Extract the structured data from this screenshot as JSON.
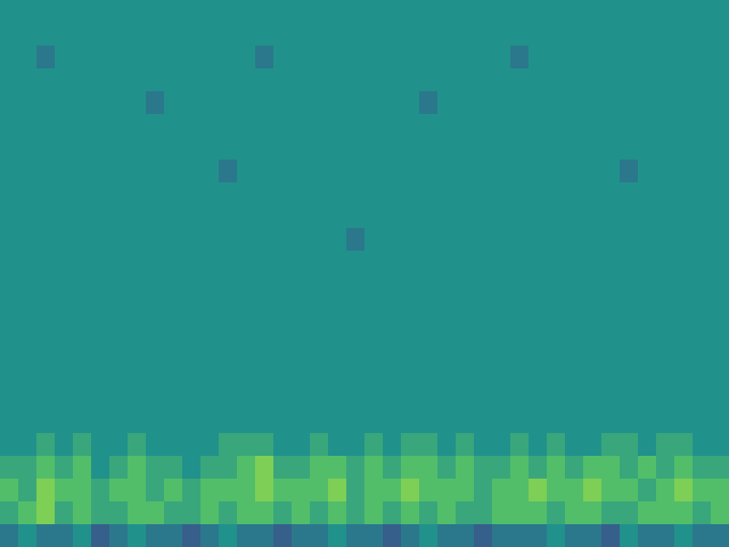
{
  "chart_data": {
    "type": "heatmap",
    "color": "viridis",
    "tick_labels": false,
    "color_range": [
      0,
      10
    ],
    "cells": [
      [
        5,
        5,
        5,
        5,
        5,
        5,
        5,
        5,
        5,
        5,
        5,
        5,
        5,
        5,
        5,
        5,
        5,
        5,
        5,
        5,
        5,
        5,
        5,
        5,
        5,
        5,
        5,
        5,
        5,
        5,
        5,
        5,
        5,
        5,
        5,
        5,
        5,
        5,
        5,
        5
      ],
      [
        5,
        5,
        5,
        5,
        5,
        5,
        5,
        5,
        5,
        5,
        5,
        5,
        5,
        5,
        5,
        5,
        5,
        5,
        5,
        5,
        5,
        5,
        5,
        5,
        5,
        5,
        5,
        5,
        5,
        5,
        5,
        5,
        5,
        5,
        5,
        5,
        5,
        5,
        5,
        5
      ],
      [
        5,
        5,
        4,
        5,
        5,
        5,
        5,
        5,
        5,
        5,
        5,
        5,
        5,
        5,
        4,
        5,
        5,
        5,
        5,
        5,
        5,
        5,
        5,
        5,
        5,
        5,
        5,
        5,
        4,
        5,
        5,
        5,
        5,
        5,
        5,
        5,
        5,
        5,
        5,
        5
      ],
      [
        5,
        5,
        5,
        5,
        5,
        5,
        5,
        5,
        5,
        5,
        5,
        5,
        5,
        5,
        5,
        5,
        5,
        5,
        5,
        5,
        5,
        5,
        5,
        5,
        5,
        5,
        5,
        5,
        5,
        5,
        5,
        5,
        5,
        5,
        5,
        5,
        5,
        5,
        5,
        5
      ],
      [
        5,
        5,
        5,
        5,
        5,
        5,
        5,
        5,
        4,
        5,
        5,
        5,
        5,
        5,
        5,
        5,
        5,
        5,
        5,
        5,
        5,
        5,
        5,
        4,
        5,
        5,
        5,
        5,
        5,
        5,
        5,
        5,
        5,
        5,
        5,
        5,
        5,
        5,
        5,
        5
      ],
      [
        5,
        5,
        5,
        5,
        5,
        5,
        5,
        5,
        5,
        5,
        5,
        5,
        5,
        5,
        5,
        5,
        5,
        5,
        5,
        5,
        5,
        5,
        5,
        5,
        5,
        5,
        5,
        5,
        5,
        5,
        5,
        5,
        5,
        5,
        5,
        5,
        5,
        5,
        5,
        5
      ],
      [
        5,
        5,
        5,
        5,
        5,
        5,
        5,
        5,
        5,
        5,
        5,
        5,
        5,
        5,
        5,
        5,
        5,
        5,
        5,
        5,
        5,
        5,
        5,
        5,
        5,
        5,
        5,
        5,
        5,
        5,
        5,
        5,
        5,
        5,
        5,
        5,
        5,
        5,
        5,
        5
      ],
      [
        5,
        5,
        5,
        5,
        5,
        5,
        5,
        5,
        5,
        5,
        5,
        5,
        4,
        5,
        5,
        5,
        5,
        5,
        5,
        5,
        5,
        5,
        5,
        5,
        5,
        5,
        5,
        5,
        5,
        5,
        5,
        5,
        5,
        5,
        4,
        5,
        5,
        5,
        5,
        5
      ],
      [
        5,
        5,
        5,
        5,
        5,
        5,
        5,
        5,
        5,
        5,
        5,
        5,
        5,
        5,
        5,
        5,
        5,
        5,
        5,
        5,
        5,
        5,
        5,
        5,
        5,
        5,
        5,
        5,
        5,
        5,
        5,
        5,
        5,
        5,
        5,
        5,
        5,
        5,
        5,
        5
      ],
      [
        5,
        5,
        5,
        5,
        5,
        5,
        5,
        5,
        5,
        5,
        5,
        5,
        5,
        5,
        5,
        5,
        5,
        5,
        5,
        5,
        5,
        5,
        5,
        5,
        5,
        5,
        5,
        5,
        5,
        5,
        5,
        5,
        5,
        5,
        5,
        5,
        5,
        5,
        5,
        5
      ],
      [
        5,
        5,
        5,
        5,
        5,
        5,
        5,
        5,
        5,
        5,
        5,
        5,
        5,
        5,
        5,
        5,
        5,
        5,
        5,
        4,
        5,
        5,
        5,
        5,
        5,
        5,
        5,
        5,
        5,
        5,
        5,
        5,
        5,
        5,
        5,
        5,
        5,
        5,
        5,
        5
      ],
      [
        5,
        5,
        5,
        5,
        5,
        5,
        5,
        5,
        5,
        5,
        5,
        5,
        5,
        5,
        5,
        5,
        5,
        5,
        5,
        5,
        5,
        5,
        5,
        5,
        5,
        5,
        5,
        5,
        5,
        5,
        5,
        5,
        5,
        5,
        5,
        5,
        5,
        5,
        5,
        5
      ],
      [
        5,
        5,
        5,
        5,
        5,
        5,
        5,
        5,
        5,
        5,
        5,
        5,
        5,
        5,
        5,
        5,
        5,
        5,
        5,
        5,
        5,
        5,
        5,
        5,
        5,
        5,
        5,
        5,
        5,
        5,
        5,
        5,
        5,
        5,
        5,
        5,
        5,
        5,
        5,
        5
      ],
      [
        5,
        5,
        5,
        5,
        5,
        5,
        5,
        5,
        5,
        5,
        5,
        5,
        5,
        5,
        5,
        5,
        5,
        5,
        5,
        5,
        5,
        5,
        5,
        5,
        5,
        5,
        5,
        5,
        5,
        5,
        5,
        5,
        5,
        5,
        5,
        5,
        5,
        5,
        5,
        5
      ],
      [
        5,
        5,
        5,
        5,
        5,
        5,
        5,
        5,
        5,
        5,
        5,
        5,
        5,
        5,
        5,
        5,
        5,
        5,
        5,
        5,
        5,
        5,
        5,
        5,
        5,
        5,
        5,
        5,
        5,
        5,
        5,
        5,
        5,
        5,
        5,
        5,
        5,
        5,
        5,
        5
      ],
      [
        5,
        5,
        5,
        5,
        5,
        5,
        5,
        5,
        5,
        5,
        5,
        5,
        5,
        5,
        5,
        5,
        5,
        5,
        5,
        5,
        5,
        5,
        5,
        5,
        5,
        5,
        5,
        5,
        5,
        5,
        5,
        5,
        5,
        5,
        5,
        5,
        5,
        5,
        5,
        5
      ],
      [
        5,
        5,
        5,
        5,
        5,
        5,
        5,
        5,
        5,
        5,
        5,
        5,
        5,
        5,
        5,
        5,
        5,
        5,
        5,
        5,
        5,
        5,
        5,
        5,
        5,
        5,
        5,
        5,
        5,
        5,
        5,
        5,
        5,
        5,
        5,
        5,
        5,
        5,
        5,
        5
      ],
      [
        5,
        5,
        5,
        5,
        5,
        5,
        5,
        5,
        5,
        5,
        5,
        5,
        5,
        5,
        5,
        5,
        5,
        5,
        5,
        5,
        5,
        5,
        5,
        5,
        5,
        5,
        5,
        5,
        5,
        5,
        5,
        5,
        5,
        5,
        5,
        5,
        5,
        5,
        5,
        5
      ],
      [
        5,
        5,
        5,
        5,
        5,
        5,
        5,
        5,
        5,
        5,
        5,
        5,
        5,
        5,
        5,
        5,
        5,
        5,
        5,
        5,
        5,
        5,
        5,
        5,
        5,
        5,
        5,
        5,
        5,
        5,
        5,
        5,
        5,
        5,
        5,
        5,
        5,
        5,
        5,
        5
      ],
      [
        5,
        5,
        6,
        5,
        6,
        5,
        5,
        6,
        5,
        5,
        5,
        5,
        6,
        6,
        6,
        5,
        5,
        6,
        5,
        5,
        6,
        5,
        6,
        6,
        5,
        6,
        5,
        5,
        6,
        5,
        6,
        5,
        5,
        6,
        6,
        5,
        6,
        6,
        5,
        5
      ],
      [
        6,
        6,
        7,
        6,
        7,
        5,
        6,
        7,
        6,
        6,
        5,
        6,
        6,
        7,
        8,
        6,
        6,
        7,
        7,
        6,
        7,
        6,
        7,
        7,
        6,
        7,
        6,
        6,
        7,
        6,
        7,
        6,
        7,
        7,
        6,
        7,
        6,
        7,
        6,
        6
      ],
      [
        7,
        6,
        8,
        7,
        7,
        6,
        7,
        7,
        6,
        7,
        6,
        7,
        7,
        7,
        8,
        7,
        7,
        7,
        8,
        6,
        7,
        7,
        8,
        7,
        7,
        7,
        6,
        7,
        7,
        8,
        7,
        7,
        8,
        7,
        7,
        6,
        7,
        8,
        7,
        7
      ],
      [
        6,
        7,
        8,
        6,
        7,
        6,
        6,
        7,
        7,
        6,
        6,
        7,
        6,
        7,
        7,
        6,
        7,
        6,
        7,
        6,
        7,
        6,
        7,
        6,
        7,
        6,
        6,
        7,
        7,
        7,
        6,
        7,
        7,
        6,
        6,
        7,
        7,
        7,
        6,
        7
      ],
      [
        4,
        5,
        4,
        4,
        5,
        3,
        4,
        5,
        4,
        4,
        3,
        4,
        5,
        4,
        4,
        3,
        4,
        4,
        5,
        4,
        4,
        3,
        4,
        5,
        4,
        4,
        3,
        4,
        4,
        4,
        5,
        4,
        4,
        3,
        5,
        4,
        4,
        5,
        4,
        4
      ]
    ]
  }
}
